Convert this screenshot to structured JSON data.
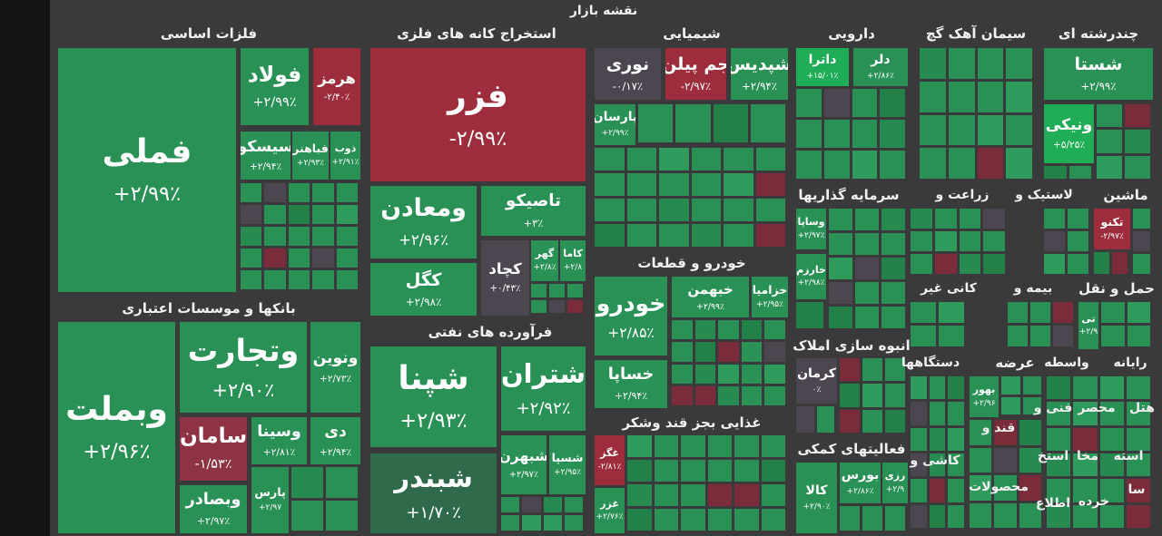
{
  "title": "نقشه بازار",
  "sectors": [
    {
      "name": "فلزات اساسی",
      "tiles": [
        {
          "name": "فملی",
          "change": "+۲/۹۹٪",
          "color": "#2a9156"
        },
        {
          "name": "فولاد",
          "change": "+۲/۹۹٪",
          "color": "#2a9156"
        },
        {
          "name": "هرمز",
          "change": "-۲/۴۰٪",
          "color": "#9d2d3c"
        },
        {
          "name": "سیسکو",
          "change": "+۲/۹۴٪",
          "color": "#2a9156"
        },
        {
          "name": "فباهنر",
          "change": "+۲/۹۳٪",
          "color": "#2a9156"
        },
        {
          "name": "ذوب",
          "change": "+۲/۹۱٪",
          "color": "#2a9156"
        }
      ]
    },
    {
      "name": "استخراج کانه های فلزی",
      "tiles": [
        {
          "name": "فزر",
          "change": "-۲/۹۹٪",
          "color": "#9d2d3c"
        },
        {
          "name": "ومعادن",
          "change": "+۲/۹۶٪",
          "color": "#2a9156"
        },
        {
          "name": "تاصیکو",
          "change": "+۳٪",
          "color": "#2a9156"
        },
        {
          "name": "کگل",
          "change": "+۲/۹۸٪",
          "color": "#2a9156"
        },
        {
          "name": "کچاد",
          "change": "+۰/۴۳٪",
          "color": "#4b4650"
        },
        {
          "name": "گهر",
          "change": "+۲/۸٪",
          "color": "#2a9156"
        },
        {
          "name": "کاما",
          "change": "+۲/۸",
          "color": "#2a9156"
        }
      ]
    },
    {
      "name": "بانکها و موسسات اعتباری",
      "tiles": [
        {
          "name": "وبملت",
          "change": "+۲/۹۶٪",
          "color": "#2a9156"
        },
        {
          "name": "وتجارت",
          "change": "+۲/۹۰٪",
          "color": "#2a9156"
        },
        {
          "name": "ونوین",
          "change": "+۲/۷۳٪",
          "color": "#2a9156"
        },
        {
          "name": "سامان",
          "change": "-۱/۵۳٪",
          "color": "#8e3344"
        },
        {
          "name": "وسینا",
          "change": "+۲/۸۱٪",
          "color": "#2a9156"
        },
        {
          "name": "دی",
          "change": "+۲/۹۴٪",
          "color": "#2a9156"
        },
        {
          "name": "وبصادر",
          "change": "+۲/۹۷٪",
          "color": "#2a9156"
        },
        {
          "name": "پارس",
          "change": "+۲/۹۷",
          "color": "#2a9156"
        }
      ]
    },
    {
      "name": "فرآورده های نفتی",
      "tiles": [
        {
          "name": "شپنا",
          "change": "+۲/۹۳٪",
          "color": "#2a9156"
        },
        {
          "name": "شتران",
          "change": "+۲/۹۲٪",
          "color": "#2a9156"
        },
        {
          "name": "شبندر",
          "change": "+۱/۷۰٪",
          "color": "#2f6b4b"
        },
        {
          "name": "شبهرن",
          "change": "+۲/۹۷٪",
          "color": "#2a9156"
        },
        {
          "name": "شسپا",
          "change": "+۲/۹۵٪",
          "color": "#2a9156"
        }
      ]
    },
    {
      "name": "شیمیایی",
      "tiles": [
        {
          "name": "نوری",
          "change": "-۰/۱۷٪",
          "color": "#4b4650"
        },
        {
          "name": "جم پیلن",
          "change": "-۲/۹۷٪",
          "color": "#9d2d3c"
        },
        {
          "name": "شپدیس",
          "change": "+۲/۹۴٪",
          "color": "#2a9156"
        },
        {
          "name": "پارسان",
          "change": "+۲/۹۹٪",
          "color": "#2a9156"
        }
      ]
    },
    {
      "name": "خودرو و قطعات",
      "tiles": [
        {
          "name": "خودرو",
          "change": "+۲/۸۵٪",
          "color": "#2a9156"
        },
        {
          "name": "خبهمن",
          "change": "+۲/۹۹٪",
          "color": "#2a9156"
        },
        {
          "name": "خزامیا",
          "change": "+۲/۹۵٪",
          "color": "#2a9156"
        },
        {
          "name": "خساپا",
          "change": "+۲/۹۴٪",
          "color": "#2a9156"
        }
      ]
    },
    {
      "name": "غذایی بجز قند وشکر",
      "tiles": [
        {
          "name": "غگز",
          "change": "-۲/۸۱٪",
          "color": "#9d2d3c"
        },
        {
          "name": "غزر",
          "change": "+۲/۷۶٪",
          "color": "#2a9156"
        }
      ]
    },
    {
      "name": "دارویی",
      "tiles": [
        {
          "name": "داترا",
          "change": "+۱۵/۰۱٪",
          "color": "#1fae57"
        },
        {
          "name": "دلر",
          "change": "+۲/۸۶٪",
          "color": "#2a9156"
        }
      ]
    },
    {
      "name": "سیمان آهک گچ",
      "tiles": []
    },
    {
      "name": "چندرشته ای",
      "tiles": [
        {
          "name": "شستا",
          "change": "+۲/۹۹٪",
          "color": "#2a9156"
        },
        {
          "name": "ونیکی",
          "change": "+۵/۲۵٪",
          "color": "#1fae57"
        }
      ]
    },
    {
      "name": "سرمایه گذاریها",
      "tiles": [
        {
          "name": "وساپا",
          "change": "+۲/۹۷٪",
          "color": "#2a9156"
        },
        {
          "name": "خارزم",
          "change": "+۲/۹۸٪",
          "color": "#2a9156"
        }
      ]
    },
    {
      "name": "انبوه سازی املاک",
      "tiles": [
        {
          "name": "کرمان",
          "change": "۰٪",
          "color": "#4b4650"
        }
      ]
    },
    {
      "name": "فعالیتهای کمکی",
      "tiles": [
        {
          "name": "کالا",
          "change": "+۲/۹۰٪",
          "color": "#2a9156"
        },
        {
          "name": "بورس",
          "change": "+۲/۸۶٪",
          "color": "#2a9156"
        },
        {
          "name": "رزی",
          "change": "+۲/۹",
          "color": "#2a9156"
        }
      ]
    },
    {
      "name": "ماشین",
      "tiles": [
        {
          "name": "تکنو",
          "change": "-۲/۹۷٪",
          "color": "#9d2d3c"
        }
      ]
    },
    {
      "name": "حمل و نقل",
      "tiles": [
        {
          "name": "تی",
          "change": "+۲/۹",
          "color": "#2a9156"
        }
      ]
    },
    {
      "name": "عرضه",
      "tiles": [
        {
          "name": "بهور",
          "change": "+۲/۹۶",
          "color": "#2a9156"
        }
      ]
    }
  ],
  "other_sectors": [
    "زراعت و",
    "لاستیک و",
    "کانی غیر",
    "بیمه و",
    "دستگاهها",
    "واسطه",
    "رایانه",
    "فنی و",
    "محصر",
    "هتل",
    "قند و",
    "کاشی و",
    "استخ",
    "مخا",
    "استه",
    "محصولات",
    "اطلاع",
    "خرده",
    "سا"
  ]
}
